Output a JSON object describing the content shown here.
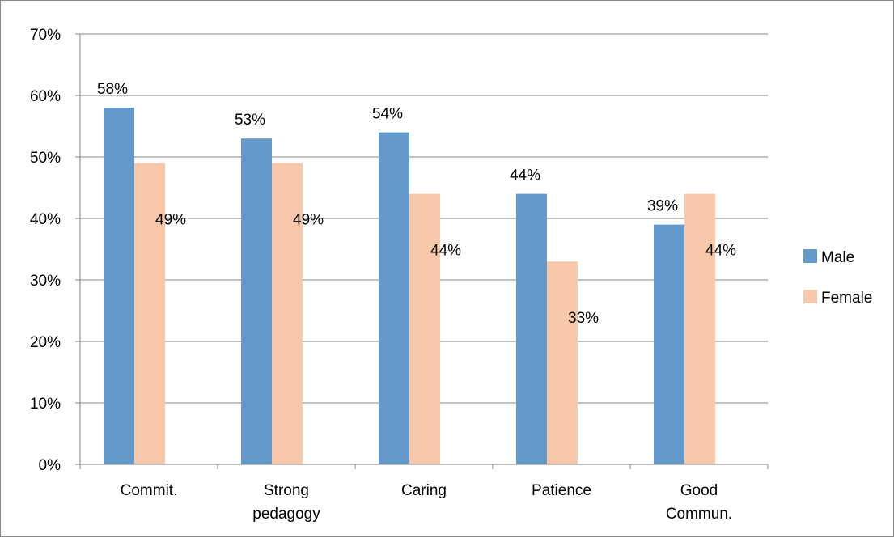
{
  "chart_data": {
    "type": "bar",
    "title": "",
    "xlabel": "",
    "ylabel": "",
    "categories": [
      [
        "Commit."
      ],
      [
        "Strong",
        "pedagogy"
      ],
      [
        "Caring"
      ],
      [
        "Patience"
      ],
      [
        "Good",
        "Commun."
      ]
    ],
    "series": [
      {
        "name": "Male",
        "color": "#6399CB",
        "values": [
          58,
          53,
          54,
          44,
          39
        ],
        "labels": [
          "58%",
          "53%",
          "54%",
          "44%",
          "39%"
        ]
      },
      {
        "name": "Female",
        "color": "#F7C8A9",
        "values": [
          49,
          49,
          44,
          33,
          44
        ],
        "labels": [
          "49%",
          "49%",
          "44%",
          "33%",
          "44%"
        ]
      }
    ],
    "ylim": [
      0,
      70
    ],
    "yticks": [
      "0%",
      "10%",
      "20%",
      "30%",
      "40%",
      "50%",
      "60%",
      "70%"
    ],
    "grid": true,
    "legend_position": "right"
  }
}
